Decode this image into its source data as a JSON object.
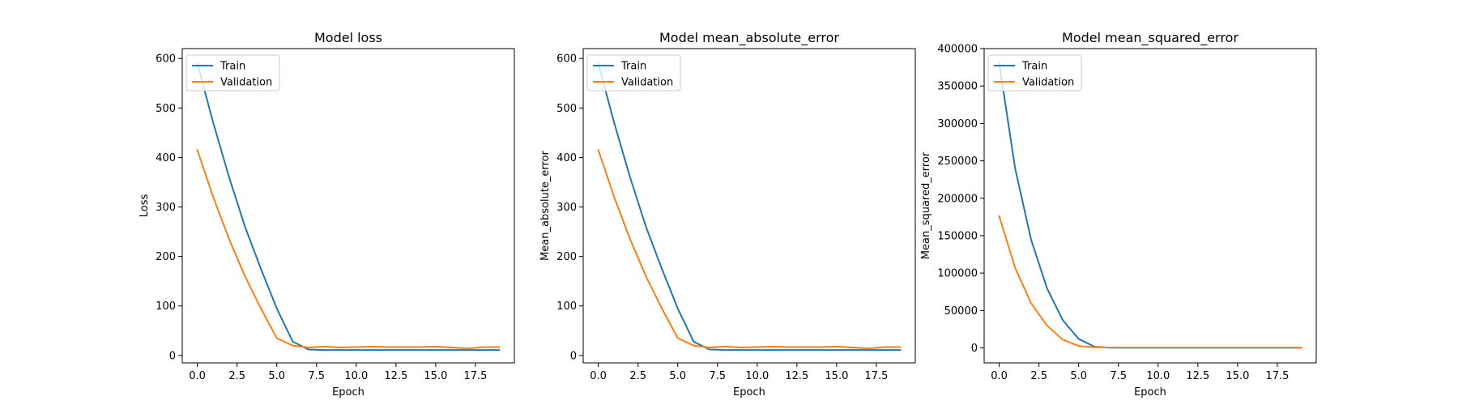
{
  "chart_data": [
    {
      "type": "line",
      "title": "Model loss",
      "xlabel": "Epoch",
      "ylabel": "Loss",
      "x": [
        0,
        1,
        2,
        3,
        4,
        5,
        6,
        7,
        8,
        9,
        10,
        11,
        12,
        13,
        14,
        15,
        16,
        17,
        18,
        19
      ],
      "xlim": [
        -0.95,
        19.95
      ],
      "ylim": [
        -15,
        620
      ],
      "xticks": [
        0.0,
        2.5,
        5.0,
        7.5,
        10.0,
        12.5,
        15.0,
        17.5
      ],
      "xtick_labels": [
        "0.0",
        "2.5",
        "5.0",
        "7.5",
        "10.0",
        "12.5",
        "15.0",
        "17.5"
      ],
      "yticks": [
        0,
        100,
        200,
        300,
        400,
        500,
        600
      ],
      "ytick_labels": [
        "0",
        "100",
        "200",
        "300",
        "400",
        "500",
        "600"
      ],
      "legend_position": "upper-left",
      "grid": false,
      "series": [
        {
          "name": "Train",
          "color": "#1f77b4",
          "values": [
            590,
            470,
            360,
            260,
            175,
            95,
            28,
            12,
            11,
            11,
            11,
            11,
            11,
            11,
            11,
            11,
            11,
            11,
            11,
            11
          ]
        },
        {
          "name": "Validation",
          "color": "#ff7f0e",
          "values": [
            415,
            320,
            235,
            160,
            95,
            35,
            20,
            16,
            18,
            16,
            17,
            18,
            17,
            17,
            17,
            18,
            16,
            14,
            17,
            17
          ]
        }
      ]
    },
    {
      "type": "line",
      "title": "Model mean_absolute_error",
      "xlabel": "Epoch",
      "ylabel": "Mean_absolute_error",
      "x": [
        0,
        1,
        2,
        3,
        4,
        5,
        6,
        7,
        8,
        9,
        10,
        11,
        12,
        13,
        14,
        15,
        16,
        17,
        18,
        19
      ],
      "xlim": [
        -0.95,
        19.95
      ],
      "ylim": [
        -15,
        620
      ],
      "xticks": [
        0.0,
        2.5,
        5.0,
        7.5,
        10.0,
        12.5,
        15.0,
        17.5
      ],
      "xtick_labels": [
        "0.0",
        "2.5",
        "5.0",
        "7.5",
        "10.0",
        "12.5",
        "15.0",
        "17.5"
      ],
      "yticks": [
        0,
        100,
        200,
        300,
        400,
        500,
        600
      ],
      "ytick_labels": [
        "0",
        "100",
        "200",
        "300",
        "400",
        "500",
        "600"
      ],
      "legend_position": "upper-left",
      "grid": false,
      "series": [
        {
          "name": "Train",
          "color": "#1f77b4",
          "values": [
            590,
            470,
            360,
            260,
            175,
            95,
            28,
            12,
            11,
            11,
            11,
            11,
            11,
            11,
            11,
            11,
            11,
            11,
            11,
            11
          ]
        },
        {
          "name": "Validation",
          "color": "#ff7f0e",
          "values": [
            415,
            320,
            235,
            160,
            95,
            35,
            20,
            16,
            18,
            16,
            17,
            18,
            17,
            17,
            17,
            18,
            16,
            14,
            17,
            17
          ]
        }
      ]
    },
    {
      "type": "line",
      "title": "Model mean_squared_error",
      "xlabel": "Epoch",
      "ylabel": "Mean_squared_error",
      "x": [
        0,
        1,
        2,
        3,
        4,
        5,
        6,
        7,
        8,
        9,
        10,
        11,
        12,
        13,
        14,
        15,
        16,
        17,
        18,
        19
      ],
      "xlim": [
        -0.95,
        19.95
      ],
      "ylim": [
        -20000,
        400000
      ],
      "xticks": [
        0.0,
        2.5,
        5.0,
        7.5,
        10.0,
        12.5,
        15.0,
        17.5
      ],
      "xtick_labels": [
        "0.0",
        "2.5",
        "5.0",
        "7.5",
        "10.0",
        "12.5",
        "15.0",
        "17.5"
      ],
      "yticks": [
        0,
        50000,
        100000,
        150000,
        200000,
        250000,
        300000,
        350000,
        400000
      ],
      "ytick_labels": [
        "0",
        "50000",
        "100000",
        "150000",
        "200000",
        "250000",
        "300000",
        "350000",
        "400000"
      ],
      "legend_position": "upper-left",
      "grid": false,
      "series": [
        {
          "name": "Train",
          "color": "#1f77b4",
          "values": [
            380000,
            240000,
            145000,
            80000,
            37000,
            12000,
            1500,
            300,
            300,
            300,
            300,
            300,
            300,
            300,
            300,
            300,
            300,
            300,
            300,
            300
          ]
        },
        {
          "name": "Validation",
          "color": "#ff7f0e",
          "values": [
            176000,
            107000,
            60000,
            30000,
            11000,
            2500,
            800,
            400,
            400,
            400,
            400,
            400,
            400,
            400,
            400,
            400,
            400,
            400,
            400,
            400
          ]
        }
      ]
    }
  ]
}
